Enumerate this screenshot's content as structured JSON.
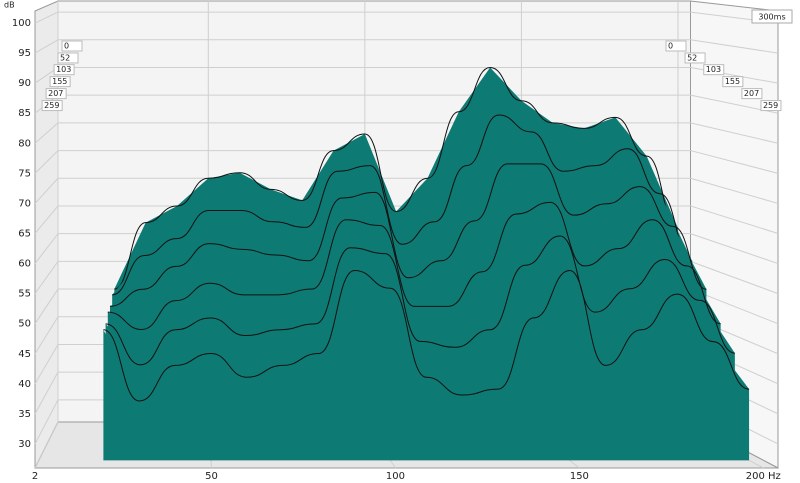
{
  "chart_data": {
    "type": "waterfall",
    "y_label": "dB",
    "depth_end_label": "300ms",
    "xlim": [
      2,
      204
    ],
    "xticks": [
      2,
      50,
      100,
      150,
      {
        "value": 200,
        "label": "200 Hz"
      }
    ],
    "ylim": [
      26,
      102
    ],
    "yticks": [
      30,
      35,
      40,
      45,
      50,
      55,
      60,
      65,
      70,
      75,
      80,
      85,
      90,
      95,
      100
    ],
    "zlim": [
      0,
      300
    ],
    "zticks": [
      0,
      52,
      103,
      155,
      207,
      259
    ],
    "color": "#0e7a74",
    "grid": true,
    "x": [
      20,
      30,
      40,
      50,
      60,
      70,
      80,
      90,
      100,
      110,
      120,
      130,
      140,
      150,
      160,
      170,
      180,
      190,
      200
    ],
    "series": [
      {
        "time": 0,
        "values": [
          50,
          62,
          65,
          70,
          71,
          68,
          66,
          75,
          78,
          64,
          70,
          82,
          90,
          84,
          80,
          79,
          81,
          74,
          61
        ]
      },
      {
        "time": 50,
        "values": [
          50,
          57,
          60,
          65,
          65,
          63,
          62,
          72,
          73,
          59,
          63,
          73,
          82,
          79,
          72,
          73,
          76,
          68,
          56
        ]
      },
      {
        "time": 100,
        "values": [
          49,
          52,
          56,
          60,
          59,
          58,
          57,
          68,
          69,
          54,
          57,
          64,
          74,
          74,
          65,
          67,
          70,
          63,
          52
        ]
      },
      {
        "time": 150,
        "values": [
          49,
          46,
          51,
          54,
          52,
          52,
          53,
          65,
          64,
          50,
          50,
          56,
          66,
          68,
          57,
          60,
          65,
          57,
          47
        ]
      },
      {
        "time": 200,
        "values": [
          48,
          41,
          47,
          49,
          46,
          47,
          48,
          61,
          60,
          45,
          44,
          47,
          58,
          63,
          50,
          54,
          59,
          52,
          43
        ]
      },
      {
        "time": 250,
        "values": [
          48,
          36,
          42,
          44,
          40,
          42,
          44,
          58,
          55,
          40,
          37,
          38,
          50,
          58,
          42,
          48,
          54,
          46,
          38
        ]
      }
    ]
  }
}
